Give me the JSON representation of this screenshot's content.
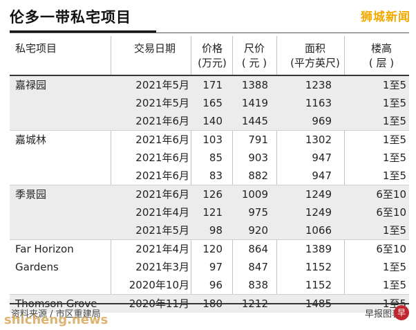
{
  "title": "伦多一带私宅项目",
  "brand": "狮城新闻",
  "headers": {
    "name": "私宅项目",
    "date": "交易日期",
    "price": [
      "价格",
      "(万元)"
    ],
    "psf": [
      "尺价",
      "( 元 )"
    ],
    "area": [
      "面积",
      "(平方英尺)"
    ],
    "floor": [
      "楼高",
      "( 层 )"
    ]
  },
  "groups": [
    {
      "name": [
        "嘉禄园"
      ],
      "rows": [
        {
          "date": "2021年5月",
          "price": "171",
          "psf": "1388",
          "area": "1238",
          "floor": "1至5"
        },
        {
          "date": "2021年5月",
          "price": "165",
          "psf": "1419",
          "area": "1163",
          "floor": "1至5"
        },
        {
          "date": "2021年6月",
          "price": "140",
          "psf": "1445",
          "area": "969",
          "floor": "1至5"
        }
      ]
    },
    {
      "name": [
        "嘉城林"
      ],
      "rows": [
        {
          "date": "2021年6月",
          "price": "103",
          "psf": "791",
          "area": "1302",
          "floor": "1至5"
        },
        {
          "date": "2021年6月",
          "price": "85",
          "psf": "903",
          "area": "947",
          "floor": "1至5"
        },
        {
          "date": "2021年6月",
          "price": "83",
          "psf": "882",
          "area": "947",
          "floor": "1至5"
        }
      ]
    },
    {
      "name": [
        "季景园"
      ],
      "rows": [
        {
          "date": "2021年6月",
          "price": "126",
          "psf": "1009",
          "area": "1249",
          "floor": "6至10"
        },
        {
          "date": "2021年4月",
          "price": "121",
          "psf": "975",
          "area": "1249",
          "floor": "6至10"
        },
        {
          "date": "2021年5月",
          "price": "98",
          "psf": "920",
          "area": "1066",
          "floor": "1至5"
        }
      ]
    },
    {
      "name": [
        "Far Horizon",
        "Gardens"
      ],
      "rows": [
        {
          "date": "2021年4月",
          "price": "120",
          "psf": "864",
          "area": "1389",
          "floor": "6至10"
        },
        {
          "date": "2021年3月",
          "price": "97",
          "psf": "847",
          "area": "1152",
          "floor": "1至5"
        },
        {
          "date": "2020年10月",
          "price": "96",
          "psf": "838",
          "area": "1152",
          "floor": "1至5"
        }
      ]
    },
    {
      "name": [
        "Thomson Grove"
      ],
      "rows": [
        {
          "date": "2020年11月",
          "price": "180",
          "psf": "1212",
          "area": "1485",
          "floor": "1至5"
        }
      ]
    }
  ],
  "source": "资料来源 / 市区重建局",
  "credit": "早报图表",
  "watermark": "shicheng.news",
  "logo_icon": "zaobao-logo-icon"
}
